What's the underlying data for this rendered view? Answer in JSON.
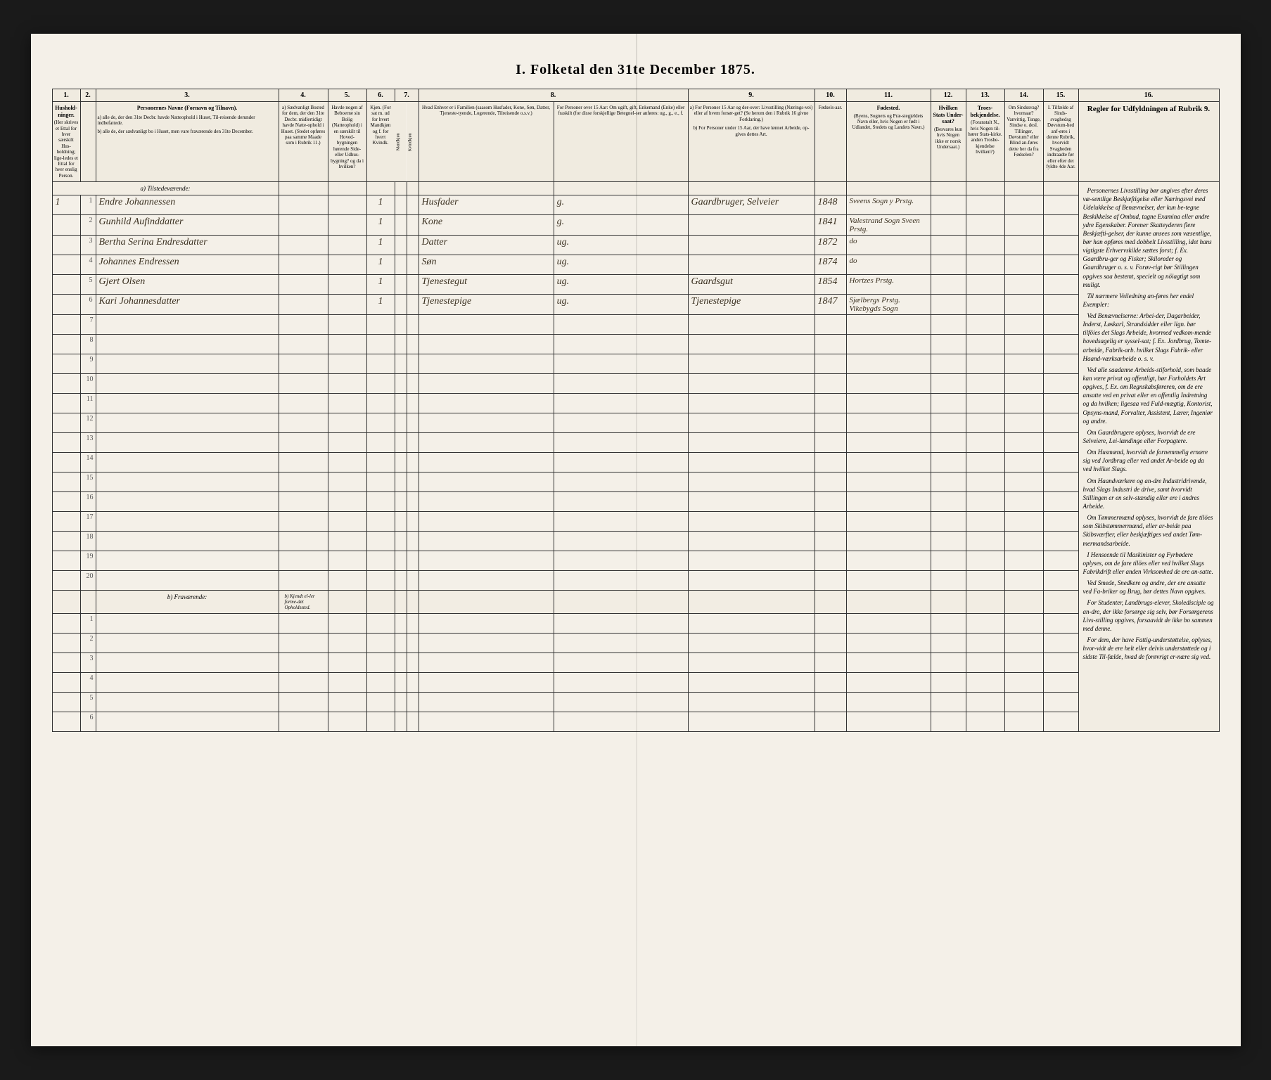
{
  "title": "I. Folketal den 31te December 1875.",
  "columns": {
    "nums": [
      "1.",
      "2.",
      "3.",
      "4.",
      "5.",
      "6.",
      "7.",
      "8.",
      "9.",
      "10.",
      "11.",
      "12.",
      "13.",
      "14.",
      "15.",
      "16."
    ],
    "h1": "Hushold-ninger.",
    "h1sub": "(Her skrives et Ettal for hver særskilt Hus-holdning; lige-ledes et Ettal for hver enslig Person.",
    "h1note": "Ligesaa for hver enslig Per-son.)",
    "h2": "",
    "h3": "Personernes Navne (Fornavn og Tilnavn).",
    "h3a": "a) alle de, der den 31te Decbr. havde Natteophold i Huset, Til-reisende derunder indbefattede.",
    "h3b": "b) alle de, der sædvanligt bo i Huset, men vare fraværende den 31te December.",
    "h4": "a) Sædvanligt Bosted for dem, der den 31te Decbr. midlertidigt havde Natte-ophold i Huset. (Stedet opføres paa samme Maade som i Rubrik 11.)",
    "h5": "Havde nogen af Beboerne sin Bolig (Natteophold) i en særskilt til Hoved-bygningen hørende Side- eller Udhus-bygning? og da i hvilken?",
    "h6": "Kjøn. (For sat m. ud for hvert Mandkjøn og f. for hvert Kvindk.",
    "h7m": "Mandkjøn",
    "h7k": "Kvindkjøn",
    "h8": "Hvad Enhver er i Familien (saasom Husfader, Kone, Søn, Datter, Tjeneste-tyende, Logerende, Tilreisende o.s.v.)",
    "h8b": "For Personer over 15 Aar: Om ugift, gift, Enkemand (Enke) eller fraskilt (for disse forskjellige Betegnel-ser anføres: ug., g., e., f.",
    "h9a": "a) For Personer 15 Aar og der-over: Livsstilling (Nærings-vei) eller af hvem forsør-get? (Se herom den i Rubrik 16 givne Forklaring.)",
    "h9b": "b) For Personer under 15 Aar, der have lønnet Arbeide, op-gives dettes Art.",
    "h10": "Fødsels-aar.",
    "h11": "Fødested.",
    "h11sub": "(Byens, Sognets og Præ-stegjeldets Navn eller, hvis Nogen er født i Udlandet, Stedets og Landets Navn.)",
    "h12": "Hvilken Stats Under-saat?",
    "h12sub": "(Besvares kun hvis Nogen ikke er norsk Undersaat.)",
    "h13": "Troes-bekjendelse.",
    "h13sub": "(Foranstalt N., hvis Nogen til-hører Stats-kirke. anden Trosbe-kjendelse hvilken?)",
    "h14": "Om Sindssvag? hvornaar? Vanvittig, Tunge, Sindse o. desl. Tillinger, Døvstum? eller Blind an-føres dette her da fra Fødselen?",
    "h15": "I. Tilfælde af Sinds-svaghedsg Døvstum-hed anf-øres i denne Rubrik, hvorvidt Svagheden indtraadte før eller efter det fyldte 4de Aar.",
    "h16": "Regler for Udfyldningen af Rubrik 9."
  },
  "section_a": "a) Tilstedeværende:",
  "section_b": "b) Fraværende:",
  "section_b_col4": "b) Kjendt el-ler forme-det Opholdssted.",
  "rows": [
    {
      "hh": "1",
      "n": "1",
      "name": "Endre Johannessen",
      "c6": "1",
      "c8": "Husfader",
      "c8b": "g.",
      "c9": "Gaardbruger, Selveier",
      "c10": "1848",
      "c11": "Sveens Sogn y Prstg."
    },
    {
      "hh": "",
      "n": "2",
      "name": "Gunhild Aufinddatter",
      "c6": "1",
      "c8": "Kone",
      "c8b": "g.",
      "c9": "",
      "c10": "1841",
      "c11": "Valestrand Sogn Sveen Prstg."
    },
    {
      "hh": "",
      "n": "3",
      "name": "Bertha Serina Endresdatter",
      "c6": "1",
      "c8": "Datter",
      "c8b": "ug.",
      "c9": "",
      "c10": "1872",
      "c11": "do"
    },
    {
      "hh": "",
      "n": "4",
      "name": "Johannes Endressen",
      "c6": "1",
      "c8": "Søn",
      "c8b": "ug.",
      "c9": "",
      "c10": "1874",
      "c11": "do"
    },
    {
      "hh": "",
      "n": "5",
      "name": "Gjert Olsen",
      "c6": "1",
      "c8": "Tjenestegut",
      "c8b": "ug.",
      "c9": "Gaardsgut",
      "c10": "1854",
      "c11": "Hortzes Prstg."
    },
    {
      "hh": "",
      "n": "6",
      "name": "Kari Johannesdatter",
      "c6": "1",
      "c8": "Tjenestepige",
      "c8b": "ug.",
      "c9": "Tjenestepige",
      "c10": "1847",
      "c11": "Sjælbergs Prstg. Vikebygds Sogn"
    }
  ],
  "empty_a": [
    7,
    8,
    9,
    10,
    11,
    12,
    13,
    14,
    15,
    16,
    17,
    18,
    19,
    20
  ],
  "empty_b": [
    1,
    2,
    3,
    4,
    5,
    6
  ],
  "instructions": [
    "Personernes Livsstilling bør angives efter deres væ-sentlige Beskjæftigelse eller Næringsvei med Udelukkelse af Benævnelser, der kun be-tegne Beskikkelse af Ombud, tagne Examina eller andre ydre Egenskaber. Forener Skatteyderen flere Beskjæfti-gelser, der kunne ansees som væsentlige, bør han opføres med dobbelt Livsstilling, idet hans vigtigste Erhvervskilde sættes forst; f. Ex. Gaardbru-ger og Fisker; Skiloreder og Gaardbruger o. s. v. Forøv-rigt bør Stillingen opgives saa bestemt, specielt og nöiagtigt som muligt.",
    "Til nærmere Veiledning an-føres her endel Exempler:",
    "Ved Benævnelserne: Arbei-der, Dagarbeider, Inderst, Løskarl, Strandsidder eller lign. bør tilföies det Slags Arbeide, hvormed vedkom-mende hovedsagelig er syssel-sat; f. Ex. Jordbrug, Tomte-arbeide, Fabrik-arb. hvilket Slags Fabrik- eller Haand-værksarbeide o. s. v.",
    "Ved alle saadanne Arbeids-stiforhold, som baade kan være privat og offentligt, bør Forholdets Art opgives, f. Ex. om Regnskabsføreren, om de ere ansatte ved en privat eller en offentlig Indretning og da hvilken; ligesaa ved Fuld-mægtig, Kontorist, Opsyns-mand, Forvalter, Assistent, Lærer, Ingeniør og andre.",
    "Om Gaardbrugere oplyses, hvorvidt de ere Selveiere, Lei-lændinge eller Forpagtere.",
    "Om Husmænd, hvorvidt de fornemmelig ernære sig ved Jordbrug eller ved andet Ar-beide og da ved hvilket Slags.",
    "Om Haandværkere og an-dre Industridrivende, hvad Slags Industri de drive, samt hvorvidt Stillingen er en selv-stændig eller ere i andres Arbeide.",
    "Om Tømmermænd oplyses, hvorvidt de fare tilöes som Skibstømmermænd, eller ar-beide paa Skibsværfter, eller beskjæftiges ved andet Tøm-mermandsarbeide.",
    "I Henseende til Maskinister og Fyrbødere oplyses, om de fare tilöes eller ved hvilket Slags Fabrikdrift eller anden Virksomhed de ere an-satte.",
    "Ved Smede, Snedkere og andre, der ere ansatte ved Fa-briker og Brug, bør dettes Navn opgives.",
    "For Studenter, Landbrugs-elever, Skoledisciple og an-dre, der ikke forsørge sig selv, bør Forsørgerens Livs-stilling opgives, forsaavidt de ikke bo sammen med denne.",
    "For dem, der have Fattig-understøttelse, oplyses, hvor-vidt de ere helt eller delvis understøttede og i sidste Til-fælde, hvad de forøvrigt er-nære sig ved."
  ]
}
